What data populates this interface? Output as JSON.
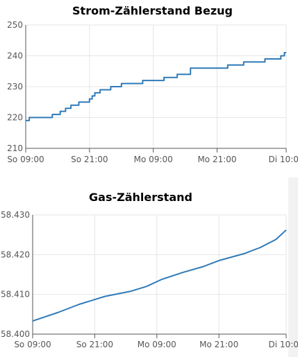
{
  "charts": {
    "strom_title": "Strom-Zählerstand Bezug",
    "gas_title": "Gas-Zählerstand"
  },
  "chart_data": [
    {
      "type": "line",
      "title": "Strom-Zählerstand Bezug",
      "xlabel": "",
      "ylabel": "",
      "x_ticks": [
        "So 09:00",
        "So 21:00",
        "Mo 09:00",
        "Mo 21:00",
        "Di 10:00"
      ],
      "y_ticks": [
        "210",
        "220",
        "230",
        "240",
        "250"
      ],
      "ylim": [
        210,
        250
      ],
      "grid": true,
      "line_color": "#2f7ab8",
      "series": [
        {
          "step": true,
          "points": [
            [
              "So 09:00",
              219
            ],
            [
              "So 09:40",
              220
            ],
            [
              "So 14:00",
              221
            ],
            [
              "So 15:30",
              222
            ],
            [
              "So 16:30",
              223
            ],
            [
              "So 17:30",
              224
            ],
            [
              "So 19:00",
              225
            ],
            [
              "So 21:00",
              226
            ],
            [
              "So 21:30",
              227
            ],
            [
              "So 22:00",
              228
            ],
            [
              "So 23:00",
              229
            ],
            [
              "Mo 01:00",
              230
            ],
            [
              "Mo 03:00",
              231
            ],
            [
              "Mo 07:00",
              232
            ],
            [
              "Mo 11:00",
              233
            ],
            [
              "Mo 13:30",
              234
            ],
            [
              "Mo 16:00",
              236
            ],
            [
              "Mo 23:00",
              237
            ],
            [
              "Di 02:00",
              238
            ],
            [
              "Di 06:00",
              239
            ],
            [
              "Di 09:00",
              240
            ],
            [
              "Di 09:40",
              241
            ],
            [
              "Di 10:00",
              241
            ]
          ]
        }
      ]
    },
    {
      "type": "line",
      "title": "Gas-Zählerstand",
      "xlabel": "",
      "ylabel": "",
      "x_ticks": [
        "So 09:00",
        "So 21:00",
        "Mo 09:00",
        "Mo 21:00",
        "Di 10:00"
      ],
      "y_ticks": [
        "58.400",
        "58.410",
        "58.420",
        "58.430"
      ],
      "ylim": [
        58.4,
        58.43
      ],
      "grid": true,
      "line_color": "#2f7ab8",
      "series": [
        {
          "step": false,
          "points": [
            [
              "So 09:00",
              58.4033
            ],
            [
              "So 14:00",
              58.4055
            ],
            [
              "So 18:00",
              58.4075
            ],
            [
              "So 23:00",
              58.4095
            ],
            [
              "Mo 04:00",
              58.4108
            ],
            [
              "Mo 07:00",
              58.412
            ],
            [
              "Mo 10:00",
              58.4138
            ],
            [
              "Mo 14:00",
              58.4155
            ],
            [
              "Mo 18:00",
              58.417
            ],
            [
              "Mo 21:00",
              58.4185
            ],
            [
              "Di 02:00",
              58.4203
            ],
            [
              "Di 05:00",
              58.4218
            ],
            [
              "Di 08:00",
              58.4238
            ],
            [
              "Di 10:00",
              58.4262
            ]
          ]
        }
      ]
    }
  ]
}
